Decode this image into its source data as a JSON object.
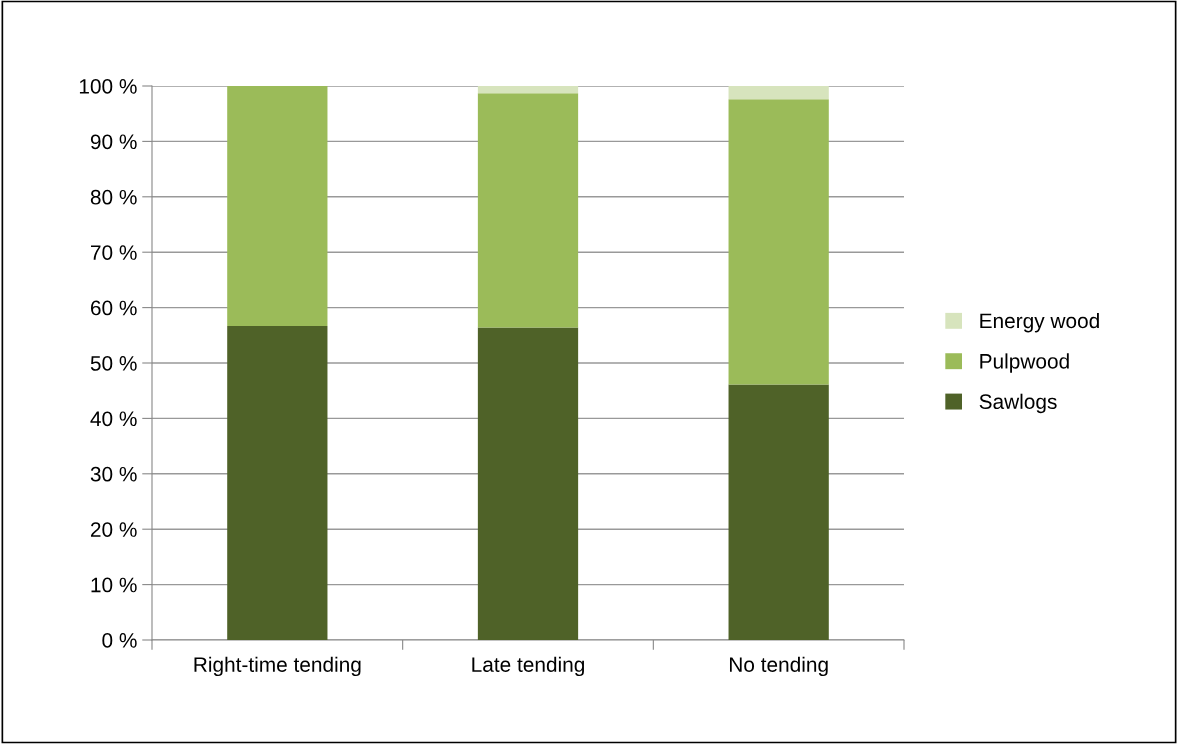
{
  "chart_data": {
    "type": "bar",
    "stacked": true,
    "categories": [
      "Right-time tending",
      "Late tending",
      "No tending"
    ],
    "series": [
      {
        "name": "Sawlogs",
        "color": "#4f6228",
        "values": [
          56.7,
          56.4,
          46.1
        ]
      },
      {
        "name": "Pulpwood",
        "color": "#9bbb59",
        "values": [
          43.3,
          42.3,
          51.5
        ]
      },
      {
        "name": "Energy wood",
        "color": "#d7e4bd",
        "values": [
          0,
          1.3,
          2.4
        ]
      }
    ],
    "ylim": [
      0,
      100
    ],
    "yticks": [
      {
        "value": 0,
        "label": "0 %"
      },
      {
        "value": 10,
        "label": "10 %"
      },
      {
        "value": 20,
        "label": "20 %"
      },
      {
        "value": 30,
        "label": "30 %"
      },
      {
        "value": 40,
        "label": "40 %"
      },
      {
        "value": 50,
        "label": "50 %"
      },
      {
        "value": 60,
        "label": "60 %"
      },
      {
        "value": 70,
        "label": "70 %"
      },
      {
        "value": 80,
        "label": "80 %"
      },
      {
        "value": 90,
        "label": "90 %"
      },
      {
        "value": 100,
        "label": "100 %"
      }
    ],
    "grid": "y",
    "legend": "right"
  }
}
